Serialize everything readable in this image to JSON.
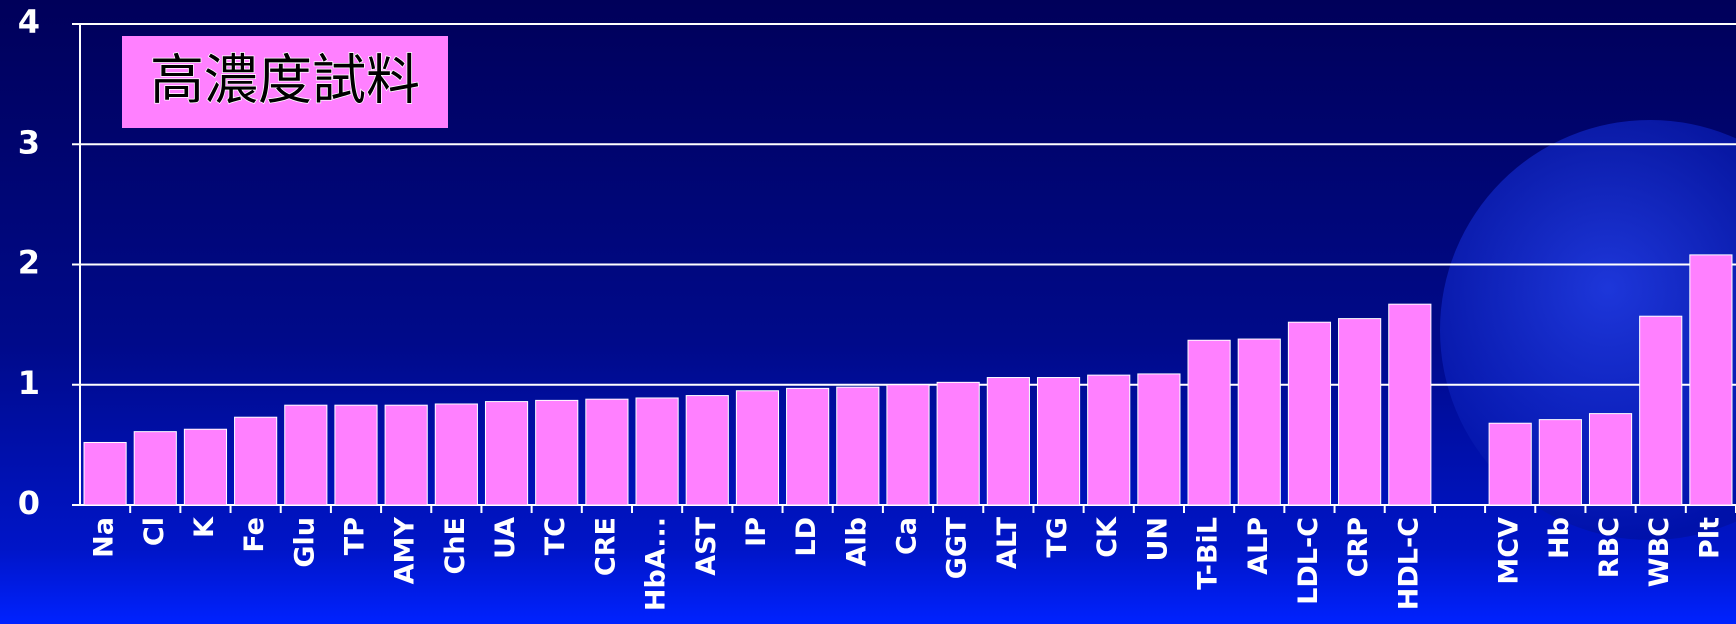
{
  "chart_data": {
    "type": "bar",
    "annotation": "高濃度試料",
    "categories": [
      "Na",
      "Cl",
      "K",
      "Fe",
      "Glu",
      "TP",
      "AMY",
      "ChE",
      "UA",
      "TC",
      "CRE",
      "HbA...",
      "AST",
      "IP",
      "LD",
      "Alb",
      "Ca",
      "GGT",
      "ALT",
      "TG",
      "CK",
      "UN",
      "T-BiL",
      "ALP",
      "LDL-C",
      "CRP",
      "HDL-C",
      null,
      "MCV",
      "Hb",
      "RBC",
      "WBC",
      "Plt"
    ],
    "values": [
      0.52,
      0.61,
      0.63,
      0.73,
      0.83,
      0.83,
      0.83,
      0.84,
      0.86,
      0.87,
      0.88,
      0.89,
      0.91,
      0.95,
      0.97,
      0.98,
      1.0,
      1.02,
      1.06,
      1.06,
      1.08,
      1.09,
      1.37,
      1.38,
      1.52,
      1.55,
      1.67,
      null,
      0.68,
      0.71,
      0.76,
      1.57,
      2.08
    ],
    "color": "#ff80ff",
    "ylim": [
      0,
      4
    ],
    "yticks": [
      0,
      1,
      2,
      3,
      4
    ],
    "grid": true
  }
}
